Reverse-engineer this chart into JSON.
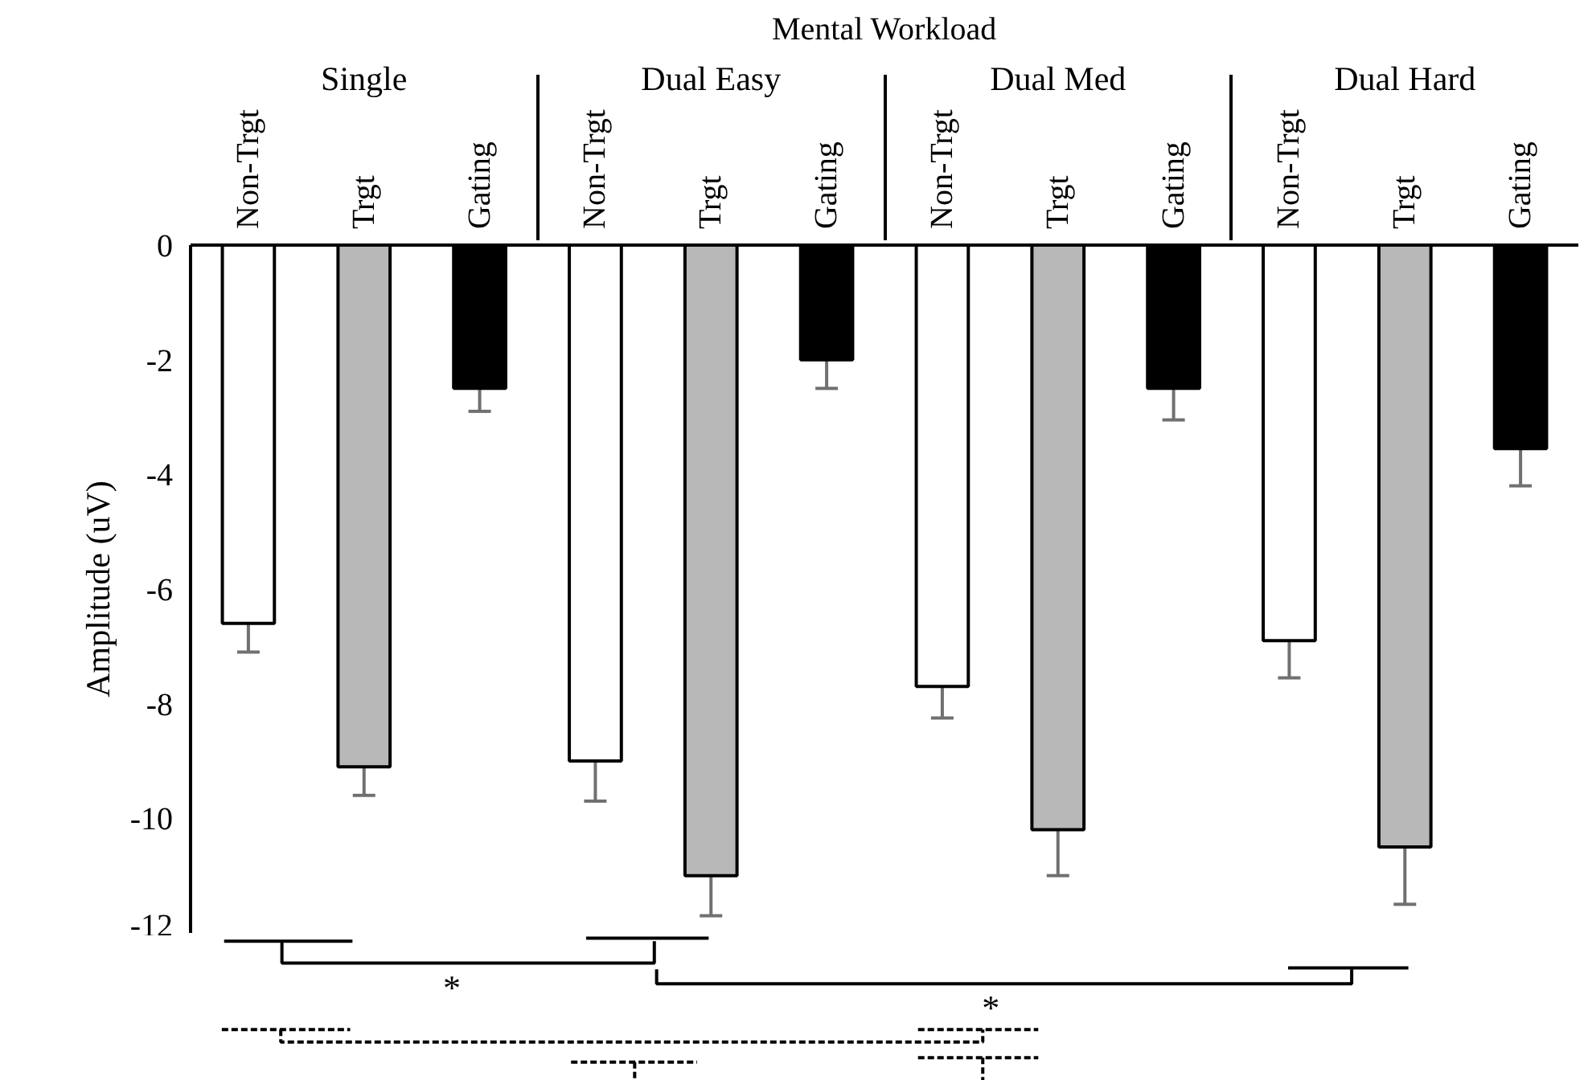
{
  "chart_data": {
    "type": "bar",
    "title": "Mental Workload",
    "ylabel": "Amplitude (uV)",
    "categories": [
      "Single",
      "Dual Easy",
      "Dual Med",
      "Dual Hard"
    ],
    "series": [
      {
        "name": "Non-Trgt",
        "color": "#ffffff",
        "values": [
          -6.6,
          -9.0,
          -7.7,
          -6.9
        ],
        "errors": [
          0.5,
          0.7,
          0.55,
          0.65
        ]
      },
      {
        "name": "Trgt",
        "color": "#b8b8b8",
        "values": [
          -9.1,
          -11.0,
          -10.2,
          -10.5
        ],
        "errors": [
          0.5,
          0.7,
          0.8,
          1.0
        ]
      },
      {
        "name": "Gating",
        "color": "#000000",
        "values": [
          -2.5,
          -2.0,
          -2.5,
          -3.55
        ],
        "errors": [
          0.4,
          0.5,
          0.55,
          0.65
        ]
      }
    ],
    "ylim": [
      -12,
      0
    ],
    "yticks": [
      0,
      -2,
      -4,
      -6,
      -8,
      -10,
      -12
    ],
    "grid": false,
    "legend": false,
    "annotations": [
      "*",
      "*"
    ]
  }
}
